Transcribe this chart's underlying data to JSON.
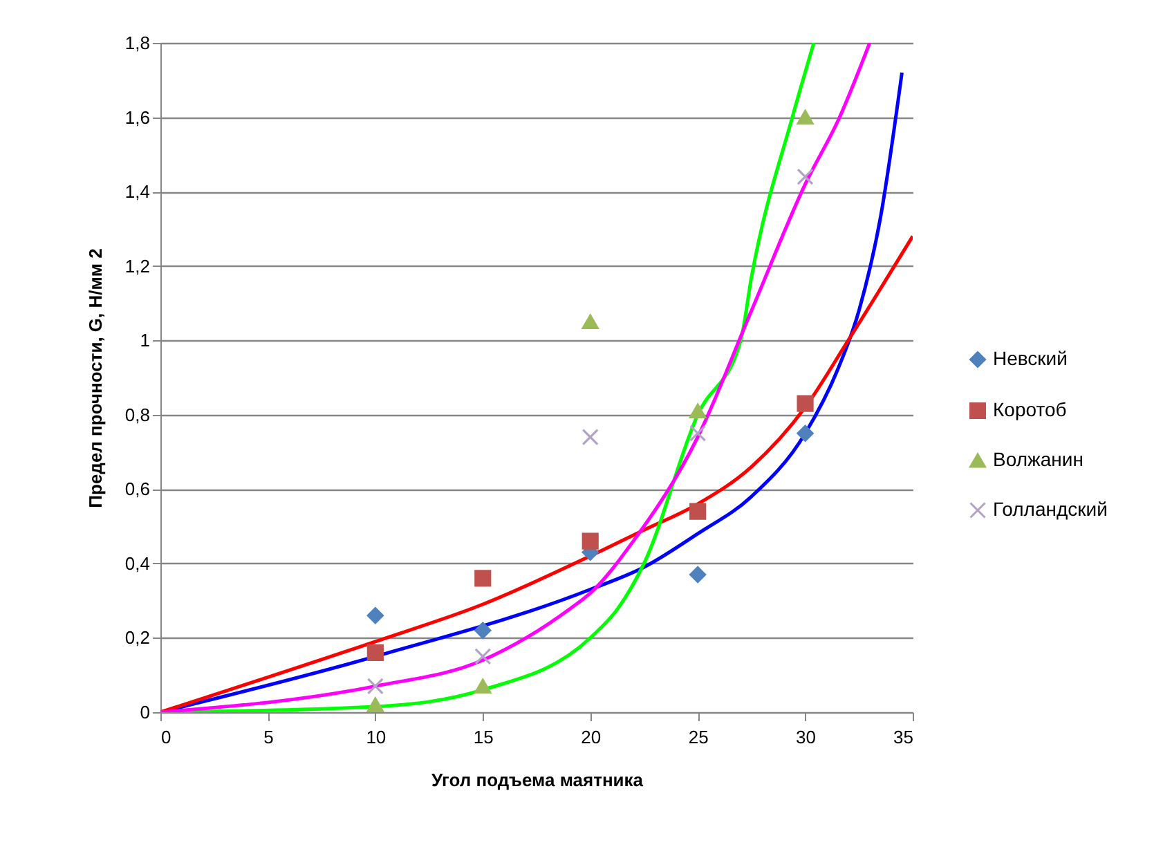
{
  "chart_data": {
    "type": "scatter",
    "xlabel": "Угол подъема маятника",
    "ylabel": "Предел прочности,  G, Н/мм 2",
    "x": [
      10,
      15,
      20,
      25,
      30
    ],
    "series": [
      {
        "name": "Невский",
        "color": "#4f81bd",
        "marker": "diamond",
        "values": [
          0.26,
          0.22,
          0.43,
          0.37,
          0.75
        ]
      },
      {
        "name": "Коротоб",
        "color": "#c0504d",
        "marker": "square",
        "values": [
          0.16,
          0.36,
          0.46,
          0.54,
          0.83
        ]
      },
      {
        "name": "Волжанин",
        "color": "#9bbb59",
        "marker": "triangle",
        "values": [
          0.02,
          0.07,
          1.05,
          0.81,
          1.6
        ]
      },
      {
        "name": "Голландский",
        "color": "#b3a2c7",
        "marker": "cross",
        "values": [
          0.07,
          0.15,
          0.74,
          0.75,
          1.44
        ]
      },
      {
        "type": "line",
        "color": "#0000ff",
        "x": [
          0,
          10,
          20,
          22.5,
          25,
          27.5,
          30,
          31.5,
          32.5,
          33.5,
          34.5
        ],
        "values": [
          0,
          0.15,
          0.33,
          0.39,
          0.48,
          0.58,
          0.75,
          0.92,
          1.08,
          1.33,
          1.72
        ]
      },
      {
        "type": "line",
        "color": "#ff0000",
        "x": [
          0,
          10,
          15,
          20,
          22.5,
          25,
          27.5,
          30,
          32,
          35
        ],
        "values": [
          0,
          0.19,
          0.29,
          0.42,
          0.49,
          0.56,
          0.66,
          0.82,
          1.0,
          1.28
        ]
      },
      {
        "type": "line",
        "color": "#00ff00",
        "x": [
          0,
          10,
          15,
          20,
          21.3,
          22.5,
          25,
          27,
          27.5,
          29.4,
          30.4
        ],
        "values": [
          0,
          0.015,
          0.06,
          0.2,
          0.28,
          0.4,
          0.8,
          1.0,
          1.17,
          1.6,
          1.8
        ]
      },
      {
        "type": "line",
        "color": "#ff00ff",
        "x": [
          0,
          10,
          15,
          19.1,
          20,
          22,
          25,
          27.5,
          30,
          31.6,
          33
        ],
        "values": [
          0,
          0.07,
          0.14,
          0.28,
          0.32,
          0.46,
          0.74,
          1.08,
          1.42,
          1.6,
          1.8
        ]
      }
    ],
    "xlim": [
      0,
      35
    ],
    "xticks": [
      0,
      5,
      10,
      15,
      20,
      25,
      30,
      35
    ],
    "ylim": [
      0,
      1.8
    ],
    "yticks": [
      0,
      {
        "value": 0.2,
        "label": "0,2"
      },
      {
        "value": 0.4,
        "label": "0,4"
      },
      {
        "value": 0.6,
        "label": "0,6"
      },
      {
        "value": 0.8,
        "label": "0,8"
      },
      1,
      {
        "value": 1.2,
        "label": "1,2"
      },
      {
        "value": 1.4,
        "label": "1,4"
      },
      {
        "value": 1.6,
        "label": "1,6"
      },
      {
        "value": 1.8,
        "label": "1,8"
      }
    ],
    "grid": "y",
    "legend": "right"
  }
}
